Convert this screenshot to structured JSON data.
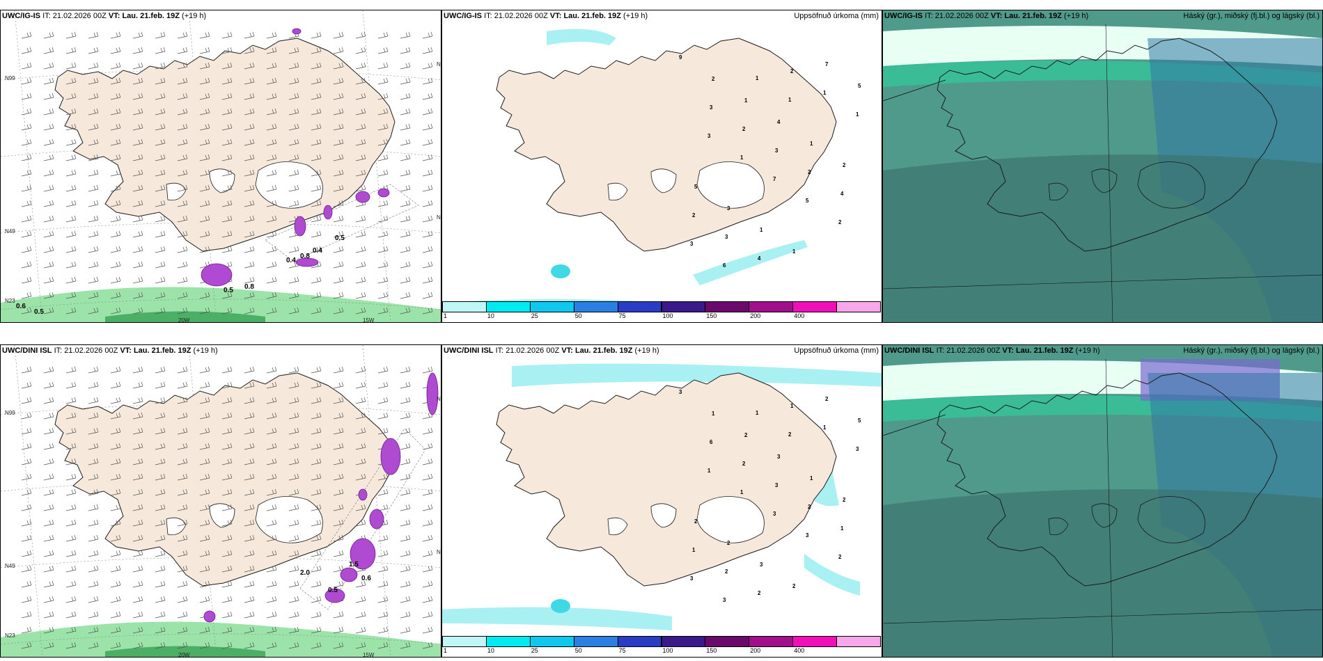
{
  "colors": {
    "land": "#f6e9dc",
    "land_dim": "#e8d5c4",
    "ice": "#ffffff",
    "coast": "#1a1a1a",
    "precip_light": "#a8f0f2",
    "precip_mid": "#3fd9e6",
    "cloud_base": "#4f9a8a",
    "cloud_dark": "#3a6f6b",
    "cloud_blue": "#2f78a6",
    "green_band": "#9be3a8",
    "purple": "#b04ad3"
  },
  "rows": [
    {
      "model": "UWC/IG-IS",
      "it_label": "IT:",
      "it_value": "21.02.2026 00Z",
      "vt_label": "VT:",
      "vt_value": "Lau. 21.feb. 19Z",
      "lead": "(+19 h)",
      "panels": [
        {
          "type": "wind",
          "contour_labels": [
            "0.6",
            "0.5",
            "0.5",
            "0.8",
            "0.4",
            "0.8",
            "0.4",
            "0.5"
          ],
          "axis": {
            "lat_top": "N99",
            "lat_mid": "N49",
            "lat_bot": "N23",
            "lat_right1": "N99",
            "lat_right2": "N49",
            "lon_left": "20W",
            "lon_right": "15W"
          }
        },
        {
          "type": "precip",
          "title_right": "Uppsöfnuð úrkoma (mm)",
          "point_values": [
            "9",
            "2",
            "1",
            "4",
            "1",
            "2",
            "5",
            "3",
            "1",
            "1",
            "7",
            "5",
            "3",
            "2",
            "3",
            "2",
            "4",
            "2",
            "3",
            "4",
            "2",
            "1",
            "1",
            "3",
            "1",
            "7",
            "5",
            "2",
            "3",
            "6",
            "1",
            "1"
          ]
        },
        {
          "type": "cloud",
          "title_right": "Háský (gr.), miðský (fj.bl.) og lágský (bl.)"
        }
      ]
    },
    {
      "model": "UWC/DINI ISL",
      "it_label": "IT:",
      "it_value": "21.02.2026 00Z",
      "vt_label": "VT:",
      "vt_value": "Lau. 21.feb. 19Z",
      "lead": "(+19 h)",
      "panels": [
        {
          "type": "wind",
          "contour_labels": [
            "2.0",
            "0.6",
            "1.5",
            "0.5"
          ],
          "axis": {
            "lat_top": "N99",
            "lat_mid": "N49",
            "lat_bot": "N23",
            "lat_right1": "N99",
            "lat_right2": "N49",
            "lon_left": "20W",
            "lon_right": "15W"
          }
        },
        {
          "type": "precip",
          "title_right": "Uppsöfnuð úrkoma (mm)",
          "point_values": [
            "3",
            "1",
            "2",
            "3",
            "1",
            "2",
            "2",
            "2",
            "3",
            "2",
            "2",
            "5",
            "6",
            "2",
            "3",
            "2",
            "1",
            "1",
            "2",
            "2",
            "1",
            "1",
            "3",
            "1",
            "1",
            "3",
            "3",
            "2",
            "3",
            "3",
            "1",
            "2"
          ]
        },
        {
          "type": "cloud",
          "title_right": "Háský (gr.), miðský (fj.bl.) og lágský (bl.)"
        }
      ]
    }
  ],
  "colorbar": {
    "ticks": [
      "1",
      "10",
      "25",
      "50",
      "75",
      "100",
      "150",
      "200",
      "400"
    ],
    "colors": [
      "#bff7f7",
      "#00eaf0",
      "#10c8ee",
      "#2a7fe0",
      "#2a3bc4",
      "#3a1a8a",
      "#6a0a6a",
      "#a0108a",
      "#f010b8",
      "#f6a8ea"
    ]
  }
}
